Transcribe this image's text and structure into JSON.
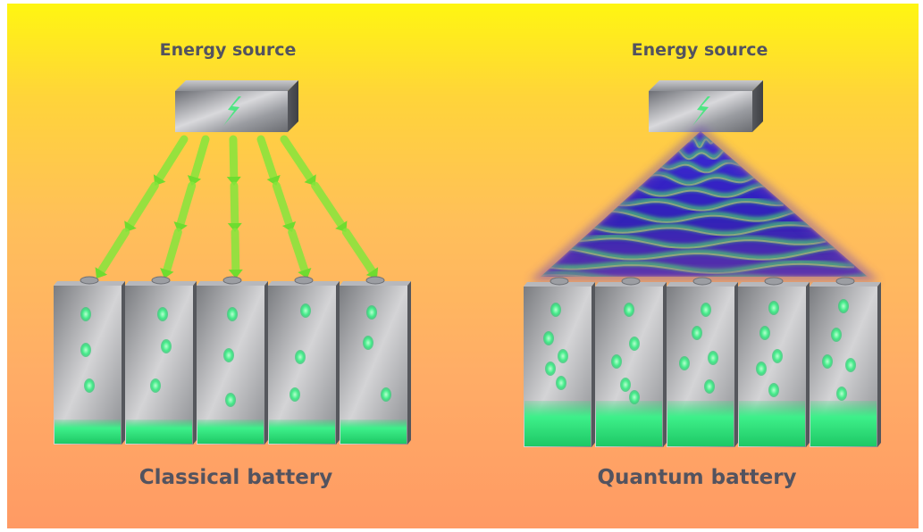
{
  "left_panel": {
    "source_label": "Energy source",
    "battery_label": "Classical battery",
    "cell_count": 5,
    "charge_mode": "individual arrows"
  },
  "right_panel": {
    "source_label": "Energy source",
    "battery_label": "Quantum battery",
    "cell_count": 5,
    "charge_mode": "collective wave"
  },
  "colors": {
    "background_top": "#fff611",
    "background_bottom": "#ff9a64",
    "label_text": "#53535f",
    "charge_green": "#34e57a",
    "arrow_green": "#7ee53a",
    "wave_blue": "#2a1fb0"
  },
  "icons": [
    "lightning-bolt-icon",
    "energy-droplet-icon"
  ]
}
